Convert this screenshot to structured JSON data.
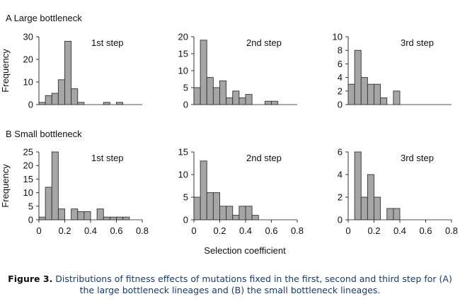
{
  "panel_labels": {
    "A": "A Large bottleneck",
    "B": "B Small bottleneck"
  },
  "y_label": "Frequency",
  "x_label": "Selection coefficient",
  "caption": {
    "bold": "Figure 3.",
    "text": "Distributions of fitness effects of mutations fixed in the first, second and third step for (A) the large bottleneck lineages and (B) the small bottleneck lineages."
  },
  "chart_data": [
    {
      "type": "bar",
      "panel": "A",
      "title": "1st step",
      "xlim": [
        0,
        0.8
      ],
      "ylim": [
        0,
        30
      ],
      "yticks": [
        0,
        10,
        20,
        30
      ],
      "xticks": [],
      "bin_width": 0.05,
      "bins": [
        0,
        0.05,
        0.1,
        0.15,
        0.2,
        0.25,
        0.3,
        0.35,
        0.4,
        0.45,
        0.5,
        0.55,
        0.6,
        0.65
      ],
      "values": [
        1,
        4,
        5,
        11,
        28,
        7,
        1,
        0,
        0,
        0,
        1,
        0,
        1,
        0
      ]
    },
    {
      "type": "bar",
      "panel": "A",
      "title": "2nd step",
      "xlim": [
        0,
        0.8
      ],
      "ylim": [
        0,
        20
      ],
      "yticks": [
        0,
        5,
        10,
        15,
        20
      ],
      "xticks": [],
      "bin_width": 0.05,
      "bins": [
        0,
        0.05,
        0.1,
        0.15,
        0.2,
        0.25,
        0.3,
        0.35,
        0.4,
        0.45,
        0.5,
        0.55,
        0.6,
        0.65
      ],
      "values": [
        5,
        19,
        8,
        5,
        7,
        2,
        4,
        2,
        3,
        0,
        0,
        1,
        1,
        0
      ]
    },
    {
      "type": "bar",
      "panel": "A",
      "title": "3rd step",
      "xlim": [
        0,
        0.8
      ],
      "ylim": [
        0,
        10
      ],
      "yticks": [
        0,
        2,
        4,
        6,
        8,
        10
      ],
      "xticks": [],
      "bin_width": 0.05,
      "bins": [
        0,
        0.05,
        0.1,
        0.15,
        0.2,
        0.25,
        0.3,
        0.35,
        0.4,
        0.45,
        0.5,
        0.55,
        0.6,
        0.65
      ],
      "values": [
        3,
        8,
        4,
        3,
        3,
        1,
        0,
        2,
        0,
        0,
        0,
        0,
        0,
        0
      ]
    },
    {
      "type": "bar",
      "panel": "B",
      "title": "1st step",
      "xlim": [
        0,
        0.8
      ],
      "ylim": [
        0,
        25
      ],
      "yticks": [
        0,
        5,
        10,
        15,
        20,
        25
      ],
      "xticks": [
        "0",
        "0.2",
        "0.4",
        "0.6",
        "0.8"
      ],
      "bin_width": 0.05,
      "bins": [
        0,
        0.05,
        0.1,
        0.15,
        0.2,
        0.25,
        0.3,
        0.35,
        0.4,
        0.45,
        0.5,
        0.55,
        0.6,
        0.65
      ],
      "values": [
        1,
        12,
        25,
        4,
        0,
        4,
        3,
        3,
        0,
        4,
        1,
        1,
        1,
        1
      ]
    },
    {
      "type": "bar",
      "panel": "B",
      "title": "2nd step",
      "xlim": [
        0,
        0.8
      ],
      "ylim": [
        0,
        15
      ],
      "yticks": [
        0,
        5,
        10,
        15
      ],
      "xticks": [
        "0",
        "0.2",
        "0.4",
        "0.6",
        "0.8"
      ],
      "bin_width": 0.05,
      "bins": [
        0,
        0.05,
        0.1,
        0.15,
        0.2,
        0.25,
        0.3,
        0.35,
        0.4,
        0.45,
        0.5,
        0.55,
        0.6,
        0.65
      ],
      "values": [
        5,
        13,
        6,
        6,
        3,
        3,
        1,
        3,
        3,
        1,
        0,
        0,
        0,
        0
      ]
    },
    {
      "type": "bar",
      "panel": "B",
      "title": "3rd step",
      "xlim": [
        0,
        0.8
      ],
      "ylim": [
        0,
        6
      ],
      "yticks": [
        0,
        2,
        4,
        6
      ],
      "xticks": [
        "0",
        "0.2",
        "0.4",
        "0.6",
        "0.8"
      ],
      "bin_width": 0.05,
      "bins": [
        0,
        0.05,
        0.1,
        0.15,
        0.2,
        0.25,
        0.3,
        0.35,
        0.4,
        0.45,
        0.5,
        0.55,
        0.6,
        0.65
      ],
      "values": [
        0,
        6,
        2,
        4,
        2,
        0,
        1,
        1,
        0,
        0,
        0,
        0,
        0,
        0
      ]
    }
  ]
}
